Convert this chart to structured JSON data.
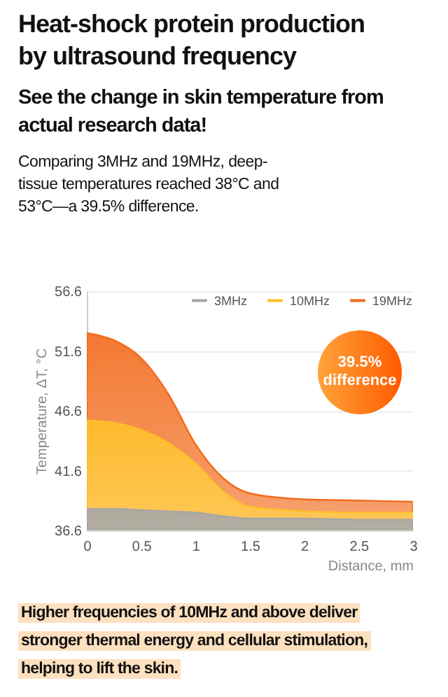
{
  "chart_data": {
    "type": "area",
    "title": "Heat-shock protein production by ultrasound frequency",
    "subtitle": "See the change in skin temperature from actual research data!",
    "annotations": [
      "Comparing 3MHz and 19MHz, deep-tissue temperatures reached 38°C and 53°C—a 39.5% difference.",
      "39.5% difference",
      "Higher frequencies of 10MHz and above deliver stronger thermal energy and cellular stimulation, helping to lift the skin."
    ],
    "xlabel": "Distance, mm",
    "ylabel": "Temperature, ΔT, °C",
    "x": [
      0,
      0.25,
      0.5,
      0.75,
      1,
      1.25,
      1.5,
      2,
      2.5,
      3
    ],
    "series": [
      {
        "name": "3MHz",
        "color": "#a6a6a6",
        "values": [
          38.4,
          38.4,
          38.3,
          38.2,
          38.1,
          37.8,
          37.6,
          37.6,
          37.5,
          37.5
        ]
      },
      {
        "name": "10MHz",
        "color": "#ffbf2a",
        "values": [
          45.8,
          45.6,
          45,
          43.9,
          42.2,
          39.9,
          38.6,
          38.2,
          38.1,
          38.1
        ]
      },
      {
        "name": "19MHz",
        "color": "#f26a1b",
        "values": [
          53.1,
          52.5,
          51,
          48,
          43.8,
          41,
          39.7,
          39.2,
          39.1,
          39
        ]
      }
    ],
    "xlim": [
      0,
      3
    ],
    "xticks": [
      0,
      0.5,
      1,
      1.5,
      2,
      2.5,
      3
    ],
    "ylim": [
      36.6,
      56.6
    ],
    "yticks": [
      36.6,
      41.6,
      46.6,
      51.6,
      56.6
    ],
    "grid": "y",
    "legend": "top right"
  }
}
